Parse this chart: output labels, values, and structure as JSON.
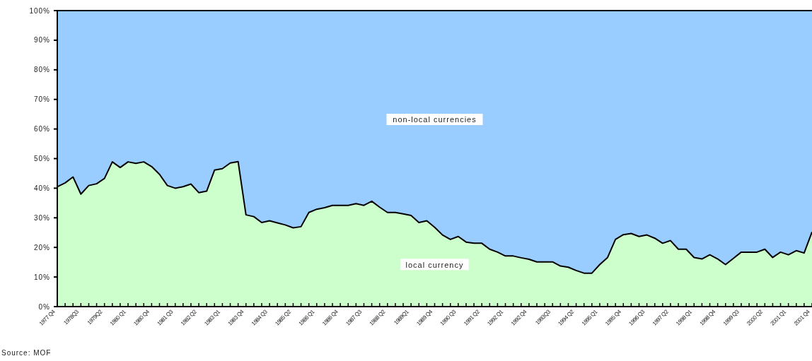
{
  "chart_data": {
    "type": "area",
    "stacked": true,
    "categories": [
      "1977 Q4",
      null,
      null,
      "1978Q3",
      null,
      null,
      "1979Q2",
      null,
      null,
      "1980 Q1",
      null,
      null,
      "1980 Q4",
      null,
      null,
      "1981 Q3",
      null,
      null,
      "1982 Q2",
      null,
      null,
      "1983 Q1",
      null,
      null,
      "1983 Q4",
      null,
      null,
      "1984 Q3",
      null,
      null,
      "1985 Q2",
      null,
      null,
      "1986 Q1",
      null,
      null,
      "1986 Q4",
      null,
      null,
      "1987 Q3",
      null,
      null,
      "1988 Q2",
      null,
      null,
      "1989Q1",
      null,
      null,
      "1989 Q4",
      null,
      null,
      "1990 Q3",
      null,
      null,
      "1991 Q2",
      null,
      null,
      "1992 Q1",
      null,
      null,
      "1992 Q4",
      null,
      null,
      "1993Q3",
      null,
      null,
      "1994 Q2",
      null,
      null,
      "1995 Q1",
      null,
      null,
      "1995 Q4",
      null,
      null,
      "1996 Q3",
      null,
      null,
      "1997 Q2",
      null,
      null,
      "1998 Q1",
      null,
      null,
      "1998 Q4",
      null,
      null,
      "1999 Q3",
      null,
      null,
      "2000 Q2",
      null,
      null,
      "2001 Q1",
      null,
      null,
      "2001 Q4"
    ],
    "series": [
      {
        "name": "local currency",
        "color": "#ccffcc",
        "values": [
          40.5,
          41.8,
          43.8,
          38,
          40.9,
          41.5,
          43.3,
          48.9,
          47,
          48.9,
          48.4,
          48.9,
          47.3,
          44.7,
          40.9,
          40,
          40.5,
          41.4,
          38.5,
          39,
          46.1,
          46.6,
          48.5,
          49,
          31,
          30.4,
          28.4,
          29,
          28.3,
          27.6,
          26.6,
          27,
          31.8,
          32.9,
          33.4,
          34.2,
          34.2,
          34.2,
          34.8,
          34.2,
          35.6,
          33.6,
          31.8,
          31.8,
          31.3,
          30.8,
          28.4,
          29,
          26.8,
          24.2,
          22.7,
          23.7,
          21.8,
          21.4,
          21.4,
          19.4,
          18.4,
          17.1,
          17.1,
          16.5,
          16,
          15.1,
          15.1,
          15.1,
          13.7,
          13.3,
          12.2,
          11.3,
          11.3,
          14.2,
          16.6,
          22.7,
          24.3,
          24.7,
          23.7,
          24.2,
          23.1,
          21.4,
          22.3,
          19.4,
          19.4,
          16.6,
          16.1,
          17.5,
          16.1,
          14.2,
          16.3,
          18.4,
          18.4,
          18.4,
          19.4,
          16.6,
          18.4,
          17.5,
          18.9,
          18.1,
          25.2
        ]
      },
      {
        "name": "non-local currencies",
        "color": "#99ccff",
        "values": [
          59.5,
          58.2,
          56.2,
          62,
          59.1,
          58.5,
          56.7,
          51.1,
          53,
          51.1,
          51.6,
          51.1,
          52.7,
          55.3,
          59.1,
          60,
          59.5,
          58.6,
          61.5,
          61,
          53.9,
          53.4,
          51.5,
          51,
          69,
          69.6,
          71.6,
          71,
          71.7,
          72.4,
          73.4,
          73,
          68.2,
          67.1,
          66.6,
          65.8,
          65.8,
          65.8,
          65.2,
          65.8,
          64.4,
          66.4,
          68.2,
          68.2,
          68.7,
          69.2,
          71.6,
          71,
          73.2,
          75.8,
          77.3,
          76.3,
          78.2,
          78.6,
          78.6,
          80.6,
          81.6,
          82.9,
          82.9,
          83.5,
          84,
          84.9,
          84.9,
          84.9,
          86.3,
          86.7,
          87.8,
          88.7,
          88.7,
          85.8,
          83.4,
          77.3,
          75.7,
          75.3,
          76.3,
          75.8,
          76.9,
          78.6,
          77.7,
          80.6,
          80.6,
          83.4,
          83.9,
          82.5,
          83.9,
          85.8,
          83.7,
          81.6,
          81.6,
          81.6,
          80.6,
          83.4,
          81.6,
          82.5,
          81.1,
          81.9,
          74.8
        ]
      }
    ],
    "ylim": [
      0,
      100
    ],
    "yticks": [
      {
        "value": 0,
        "label": "0%"
      },
      {
        "value": 10,
        "label": "10%"
      },
      {
        "value": 20,
        "label": "20%"
      },
      {
        "value": 30,
        "label": "30%"
      },
      {
        "value": 40,
        "label": "40%"
      },
      {
        "value": 50,
        "label": "50%"
      },
      {
        "value": 60,
        "label": "60%"
      },
      {
        "value": 70,
        "label": "70%"
      },
      {
        "value": 80,
        "label": "80%"
      },
      {
        "value": 90,
        "label": "90%"
      },
      {
        "value": 100,
        "label": "100%"
      }
    ],
    "grid": false,
    "annotations": [
      "Source: MOF"
    ]
  }
}
